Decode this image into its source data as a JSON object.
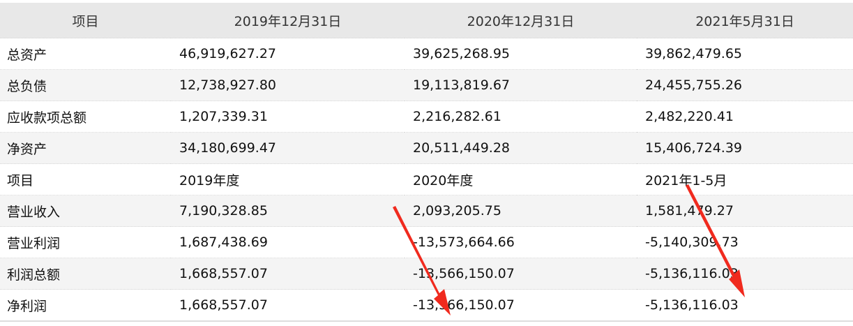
{
  "table": {
    "headers": [
      "项目",
      "2019年12月31日",
      "2020年12月31日",
      "2021年5月31日"
    ],
    "rows": [
      [
        "总资产",
        "46,919,627.27",
        "39,625,268.95",
        "39,862,479.65"
      ],
      [
        "总负债",
        "12,738,927.80",
        "19,113,819.67",
        "24,455,755.26"
      ],
      [
        "应收款项总额",
        "1,207,339.31",
        "2,216,282.61",
        "2,482,220.41"
      ],
      [
        "净资产",
        "34,180,699.47",
        "20,511,449.28",
        "15,406,724.39"
      ],
      [
        "项目",
        "2019年度",
        "2020年度",
        "2021年1-5月"
      ],
      [
        "营业收入",
        "7,190,328.85",
        "2,093,205.75",
        "1,581,479.27"
      ],
      [
        "营业利润",
        "1,687,438.69",
        "-13,573,664.66",
        "-5,140,309.73"
      ],
      [
        "利润总额",
        "1,668,557.07",
        "-13,566,150.07",
        "-5,136,116.03"
      ],
      [
        "净利润",
        "1,668,557.07",
        "-13,566,150.07",
        "-5,136,116.03"
      ]
    ]
  },
  "annotations": {
    "arrow_color": "#f02a1e",
    "arrow_count": 2
  }
}
